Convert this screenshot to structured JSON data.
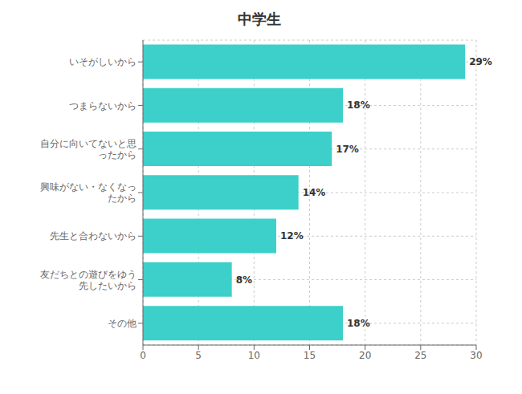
{
  "chart_data": {
    "type": "bar",
    "title": "中学生",
    "orientation": "horizontal",
    "categories": [
      "いそがしいから",
      "つまらないから",
      "自分に向いてないと思\nったから",
      "興味がない・なくなっ\nたから",
      "先生と合わないから",
      "友だちとの遊びをゆう\n先したいから",
      "その他"
    ],
    "values": [
      29,
      18,
      17,
      14,
      12,
      8,
      18
    ],
    "value_labels": [
      "29%",
      "18%",
      "17%",
      "14%",
      "12%",
      "8%",
      "18%"
    ],
    "data_labels": true,
    "color": "#3dcfca",
    "xlim": [
      0,
      30
    ],
    "xticks": [
      0,
      5,
      10,
      15,
      20,
      25,
      30
    ],
    "grid": true
  }
}
